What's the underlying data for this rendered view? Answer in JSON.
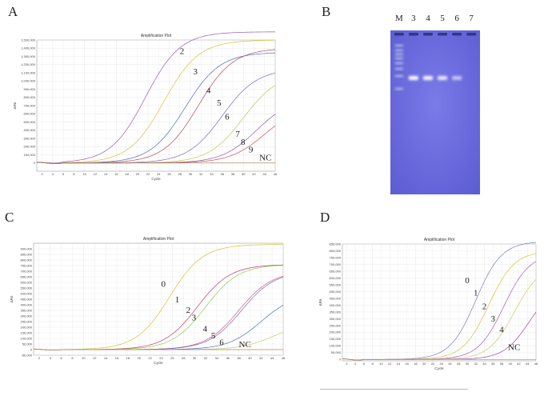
{
  "panels": {
    "A": "A",
    "B": "B",
    "C": "C",
    "D": "D"
  },
  "chart_data": [
    {
      "type": "line",
      "panel": "A",
      "title": "Amplification Plot",
      "xlabel": "Cycle",
      "ylabel": "ΔRn",
      "xlim": [
        1,
        46
      ],
      "ylim": [
        -100000,
        1500000
      ],
      "xticks": [
        2,
        4,
        6,
        8,
        10,
        12,
        14,
        16,
        18,
        20,
        22,
        24,
        26,
        28,
        30,
        32,
        34,
        36,
        38,
        40,
        42,
        44,
        46
      ],
      "yticks": [
        0,
        100000,
        200000,
        300000,
        400000,
        500000,
        600000,
        700000,
        800000,
        900000,
        1000000,
        1100000,
        1200000,
        1300000,
        1400000,
        1500000
      ],
      "yticklabels": [
        "0",
        "100,000",
        "200,000",
        "300,000",
        "400,000",
        "500,000",
        "600,000",
        "700,000",
        "800,000",
        "900,000",
        "1,000,000",
        "1,100,000",
        "1,200,000",
        "1,300,000",
        "1,400,000",
        "1,500,000"
      ],
      "series": [
        {
          "name": "2",
          "color": "#9b59b6",
          "midpoint": 21.5,
          "plateau": 1600000,
          "slope": 3.3
        },
        {
          "name": "3",
          "color": "#d4c233",
          "midpoint": 25.0,
          "plateau": 1500000,
          "slope": 3.3
        },
        {
          "name": "4",
          "color": "#4a6fc2",
          "midpoint": 29.0,
          "plateau": 1350000,
          "slope": 3.3
        },
        {
          "name": "5",
          "color": "#b5495b",
          "midpoint": 31.5,
          "plateau": 1400000,
          "slope": 3.3
        },
        {
          "name": "6",
          "color": "#7b68c8",
          "midpoint": 36.0,
          "plateau": 1150000,
          "slope": 3.3
        },
        {
          "name": "7",
          "color": "#b8cf4a",
          "midpoint": 40.0,
          "plateau": 1100000,
          "slope": 3.3
        },
        {
          "name": "8",
          "color": "#8e5fa3",
          "midpoint": 42.5,
          "plateau": 800000,
          "slope": 3.3
        },
        {
          "name": "9",
          "color": "#c44d6a",
          "midpoint": 44.0,
          "plateau": 700000,
          "slope": 3.3
        },
        {
          "name": "NC",
          "color": "#b38b5a",
          "midpoint": 999,
          "plateau": 0,
          "slope": 3.3
        }
      ],
      "curve_labels": [
        {
          "text": "2",
          "x": 28.0,
          "y": 1330000
        },
        {
          "text": "3",
          "x": 30.5,
          "y": 1080000
        },
        {
          "text": "4",
          "x": 33.0,
          "y": 850000
        },
        {
          "text": "5",
          "x": 35.0,
          "y": 700000
        },
        {
          "text": "6",
          "x": 36.5,
          "y": 530000
        },
        {
          "text": "7",
          "x": 38.5,
          "y": 320000
        },
        {
          "text": "8",
          "x": 39.5,
          "y": 220000
        },
        {
          "text": "9",
          "x": 41.0,
          "y": 130000
        },
        {
          "text": "NC",
          "x": 43.0,
          "y": 30000
        }
      ]
    },
    {
      "type": "line",
      "panel": "C",
      "title": "Amplification Plot",
      "xlabel": "Cycle",
      "ylabel": "ΔRn",
      "xlim": [
        1,
        46
      ],
      "ylim": [
        -50000,
        950000
      ],
      "xticks": [
        2,
        4,
        6,
        8,
        10,
        12,
        14,
        16,
        18,
        20,
        22,
        24,
        26,
        28,
        30,
        32,
        34,
        36,
        38,
        40,
        42,
        44,
        46
      ],
      "yticks": [
        -50000,
        0,
        50000,
        100000,
        150000,
        200000,
        250000,
        300000,
        350000,
        400000,
        450000,
        500000,
        550000,
        600000,
        650000,
        700000,
        750000,
        800000,
        850000,
        900000
      ],
      "yticklabels": [
        "-50,000",
        "0",
        "50,000",
        "100,000",
        "150,000",
        "200,000",
        "250,000",
        "300,000",
        "350,000",
        "400,000",
        "450,000",
        "500,000",
        "550,000",
        "600,000",
        "650,000",
        "700,000",
        "750,000",
        "800,000",
        "850,000",
        "900,000"
      ],
      "series": [
        {
          "name": "0",
          "color": "#d4c233",
          "midpoint": 25.5,
          "plateau": 940000,
          "slope": 3.0
        },
        {
          "name": "1",
          "color": "#c0397a",
          "midpoint": 30.5,
          "plateau": 760000,
          "slope": 3.0
        },
        {
          "name": "2",
          "color": "#8fcf4a",
          "midpoint": 32.0,
          "plateau": 760000,
          "slope": 3.0
        },
        {
          "name": "3",
          "color": "#d05a74",
          "midpoint": 38.0,
          "plateau": 700000,
          "slope": 3.0
        },
        {
          "name": "4",
          "color": "#7b68c8",
          "midpoint": 38.5,
          "plateau": 700000,
          "slope": 3.0
        },
        {
          "name": "5",
          "color": "#4a6fc2",
          "midpoint": 42.0,
          "plateau": 500000,
          "slope": 3.0
        },
        {
          "name": "6",
          "color": "#c8c86a",
          "midpoint": 44.5,
          "plateau": 250000,
          "slope": 3.0
        },
        {
          "name": "NC",
          "color": "#b38b5a",
          "midpoint": 999,
          "plateau": 0,
          "slope": 3.0
        }
      ],
      "curve_labels": [
        {
          "text": "0",
          "x": 24.0,
          "y": 560000
        },
        {
          "text": "1",
          "x": 26.5,
          "y": 420000
        },
        {
          "text": "2",
          "x": 28.5,
          "y": 330000
        },
        {
          "text": "3",
          "x": 29.5,
          "y": 260000
        },
        {
          "text": "4",
          "x": 31.5,
          "y": 160000
        },
        {
          "text": "5",
          "x": 33.0,
          "y": 100000
        },
        {
          "text": "6",
          "x": 34.5,
          "y": 40000
        },
        {
          "text": "NC",
          "x": 38.0,
          "y": 20000
        }
      ]
    },
    {
      "type": "line",
      "panel": "D",
      "title": "Amplification Plot",
      "xlabel": "Cycle",
      "ylabel": "ΔRn",
      "xlim": [
        1,
        46
      ],
      "ylim": [
        -10000,
        850000
      ],
      "xticks": [
        2,
        4,
        6,
        8,
        10,
        12,
        14,
        16,
        18,
        20,
        22,
        24,
        26,
        28,
        30,
        32,
        34,
        36,
        38,
        40,
        42,
        44,
        46
      ],
      "yticks": [
        0,
        50000,
        100000,
        150000,
        200000,
        250000,
        300000,
        350000,
        400000,
        450000,
        500000,
        550000,
        600000,
        650000,
        700000,
        750000,
        800000,
        850000
      ],
      "yticklabels": [
        "0",
        "50,000",
        "100,000",
        "150,000",
        "200,000",
        "250,000",
        "300,000",
        "350,000",
        "400,000",
        "450,000",
        "500,000",
        "550,000",
        "600,000",
        "650,000",
        "700,000",
        "750,000",
        "800,000",
        "850,000"
      ],
      "series": [
        {
          "name": "0",
          "color": "#7b7bc8",
          "midpoint": 32.0,
          "plateau": 870000,
          "slope": 3.0
        },
        {
          "name": "1",
          "color": "#d4c233",
          "midpoint": 35.0,
          "plateau": 800000,
          "slope": 3.0
        },
        {
          "name": "2",
          "color": "#a855c8",
          "midpoint": 38.5,
          "plateau": 780000,
          "slope": 3.0
        },
        {
          "name": "3",
          "color": "#c8c86a",
          "midpoint": 41.0,
          "plateau": 700000,
          "slope": 3.0
        },
        {
          "name": "4",
          "color": "#9a4aa0",
          "midpoint": 44.5,
          "plateau": 560000,
          "slope": 3.0
        },
        {
          "name": "NC",
          "color": "#b38b5a",
          "midpoint": 999,
          "plateau": 0,
          "slope": 3.0
        }
      ],
      "curve_labels": [
        {
          "text": "0",
          "x": 29.5,
          "y": 560000
        },
        {
          "text": "1",
          "x": 31.5,
          "y": 470000
        },
        {
          "text": "2",
          "x": 33.5,
          "y": 370000
        },
        {
          "text": "3",
          "x": 35.5,
          "y": 280000
        },
        {
          "text": "4",
          "x": 37.5,
          "y": 200000
        },
        {
          "text": "NC",
          "x": 39.5,
          "y": 70000
        }
      ]
    }
  ],
  "gel": {
    "lane_labels": [
      "M",
      "3",
      "4",
      "5",
      "6",
      "7"
    ],
    "background": "#6f6fe0",
    "band_intensity": [
      1.0,
      0.95,
      0.8,
      0.45,
      0.0
    ]
  }
}
